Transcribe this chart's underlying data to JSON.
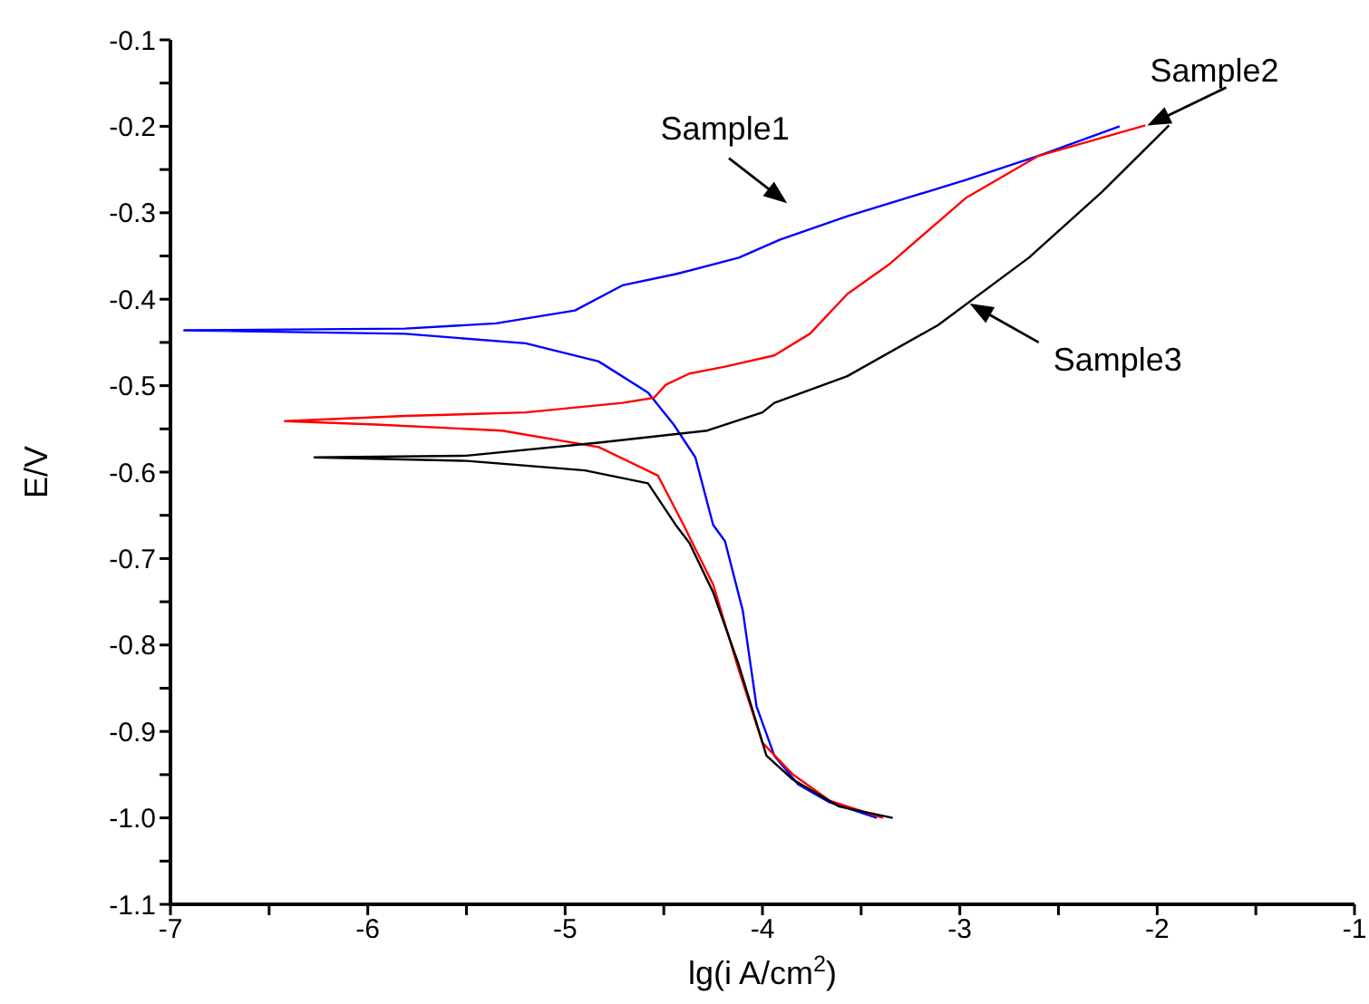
{
  "chart_data": {
    "type": "line",
    "xlabel": "lg(i A/cm$^{2}$)",
    "ylabel": "E/V",
    "xlim": [
      -7,
      -1
    ],
    "xticks": [
      -7,
      {
        "value": -6.5,
        "label": null
      },
      -6,
      {
        "value": -5.5,
        "label": null
      },
      -5,
      {
        "value": -4.5,
        "label": null
      },
      -4,
      {
        "value": -3.5,
        "label": null
      },
      -3,
      {
        "value": -2.5,
        "label": null
      },
      -2,
      {
        "value": -1.5,
        "label": null
      },
      -1
    ],
    "ylim": [
      -1.1,
      -0.1
    ],
    "yticks": [
      -1.1,
      {
        "value": -1.05,
        "label": null
      },
      {
        "value": -1.0,
        "label": "-1.0"
      },
      {
        "value": -0.95,
        "label": null
      },
      -0.9,
      {
        "value": -0.85,
        "label": null
      },
      -0.8,
      {
        "value": -0.75,
        "label": null
      },
      -0.7,
      {
        "value": -0.65,
        "label": null
      },
      -0.6,
      {
        "value": -0.55,
        "label": null
      },
      -0.5,
      {
        "value": -0.45,
        "label": null
      },
      -0.4,
      {
        "value": -0.35,
        "label": null
      },
      -0.3,
      {
        "value": -0.25,
        "label": null
      },
      -0.2,
      {
        "value": -0.15,
        "label": null
      },
      -0.1
    ],
    "grid": false,
    "legend": false,
    "marker": "none",
    "line_style": "solid",
    "series": [
      {
        "name": "Sample1",
        "color": "#0000ff",
        "x": [
          -3.42,
          -3.66,
          -3.82,
          -3.94,
          -4.03,
          -4.1,
          -4.19,
          -4.25,
          -4.34,
          -4.45,
          -4.58,
          -4.83,
          -5.2,
          -5.81,
          -6.93,
          -5.81,
          -5.35,
          -4.95,
          -4.71,
          -4.44,
          -4.12,
          -3.91,
          -3.57,
          -2.97,
          -2.6,
          -2.19
        ],
        "values": [
          -1.0,
          -0.982,
          -0.961,
          -0.928,
          -0.871,
          -0.76,
          -0.68,
          -0.661,
          -0.583,
          -0.545,
          -0.508,
          -0.472,
          -0.451,
          -0.44,
          -0.436,
          -0.434,
          -0.428,
          -0.413,
          -0.384,
          -0.371,
          -0.352,
          -0.331,
          -0.304,
          -0.262,
          -0.234,
          -0.2
        ]
      },
      {
        "name": "Sample2",
        "color": "#ff0000",
        "x": [
          -3.39,
          -3.66,
          -3.85,
          -4.0,
          -4.12,
          -4.25,
          -4.37,
          -4.4,
          -4.53,
          -4.83,
          -5.32,
          -5.96,
          -6.42,
          -5.81,
          -5.2,
          -4.71,
          -4.55,
          -4.49,
          -4.37,
          -4.19,
          -3.94,
          -3.76,
          -3.57,
          -3.36,
          -2.97,
          -2.6,
          -2.06
        ],
        "values": [
          -1.0,
          -0.98,
          -0.949,
          -0.913,
          -0.829,
          -0.73,
          -0.675,
          -0.661,
          -0.604,
          -0.571,
          -0.552,
          -0.545,
          -0.541,
          -0.535,
          -0.531,
          -0.52,
          -0.514,
          -0.499,
          -0.486,
          -0.478,
          -0.465,
          -0.44,
          -0.394,
          -0.36,
          -0.283,
          -0.234,
          -0.199
        ]
      },
      {
        "name": "Sample3",
        "color": "#000000",
        "x": [
          -3.34,
          -3.61,
          -3.85,
          -3.98,
          -4.12,
          -4.25,
          -4.37,
          -4.44,
          -4.58,
          -4.9,
          -5.5,
          -6.27,
          -5.5,
          -4.83,
          -4.28,
          -4.0,
          -3.94,
          -3.57,
          -3.11,
          -2.65,
          -2.28,
          -1.94
        ],
        "values": [
          -1.0,
          -0.987,
          -0.955,
          -0.928,
          -0.823,
          -0.739,
          -0.682,
          -0.661,
          -0.613,
          -0.598,
          -0.587,
          -0.583,
          -0.581,
          -0.566,
          -0.552,
          -0.531,
          -0.52,
          -0.489,
          -0.43,
          -0.352,
          -0.276,
          -0.199
        ]
      }
    ]
  }
}
